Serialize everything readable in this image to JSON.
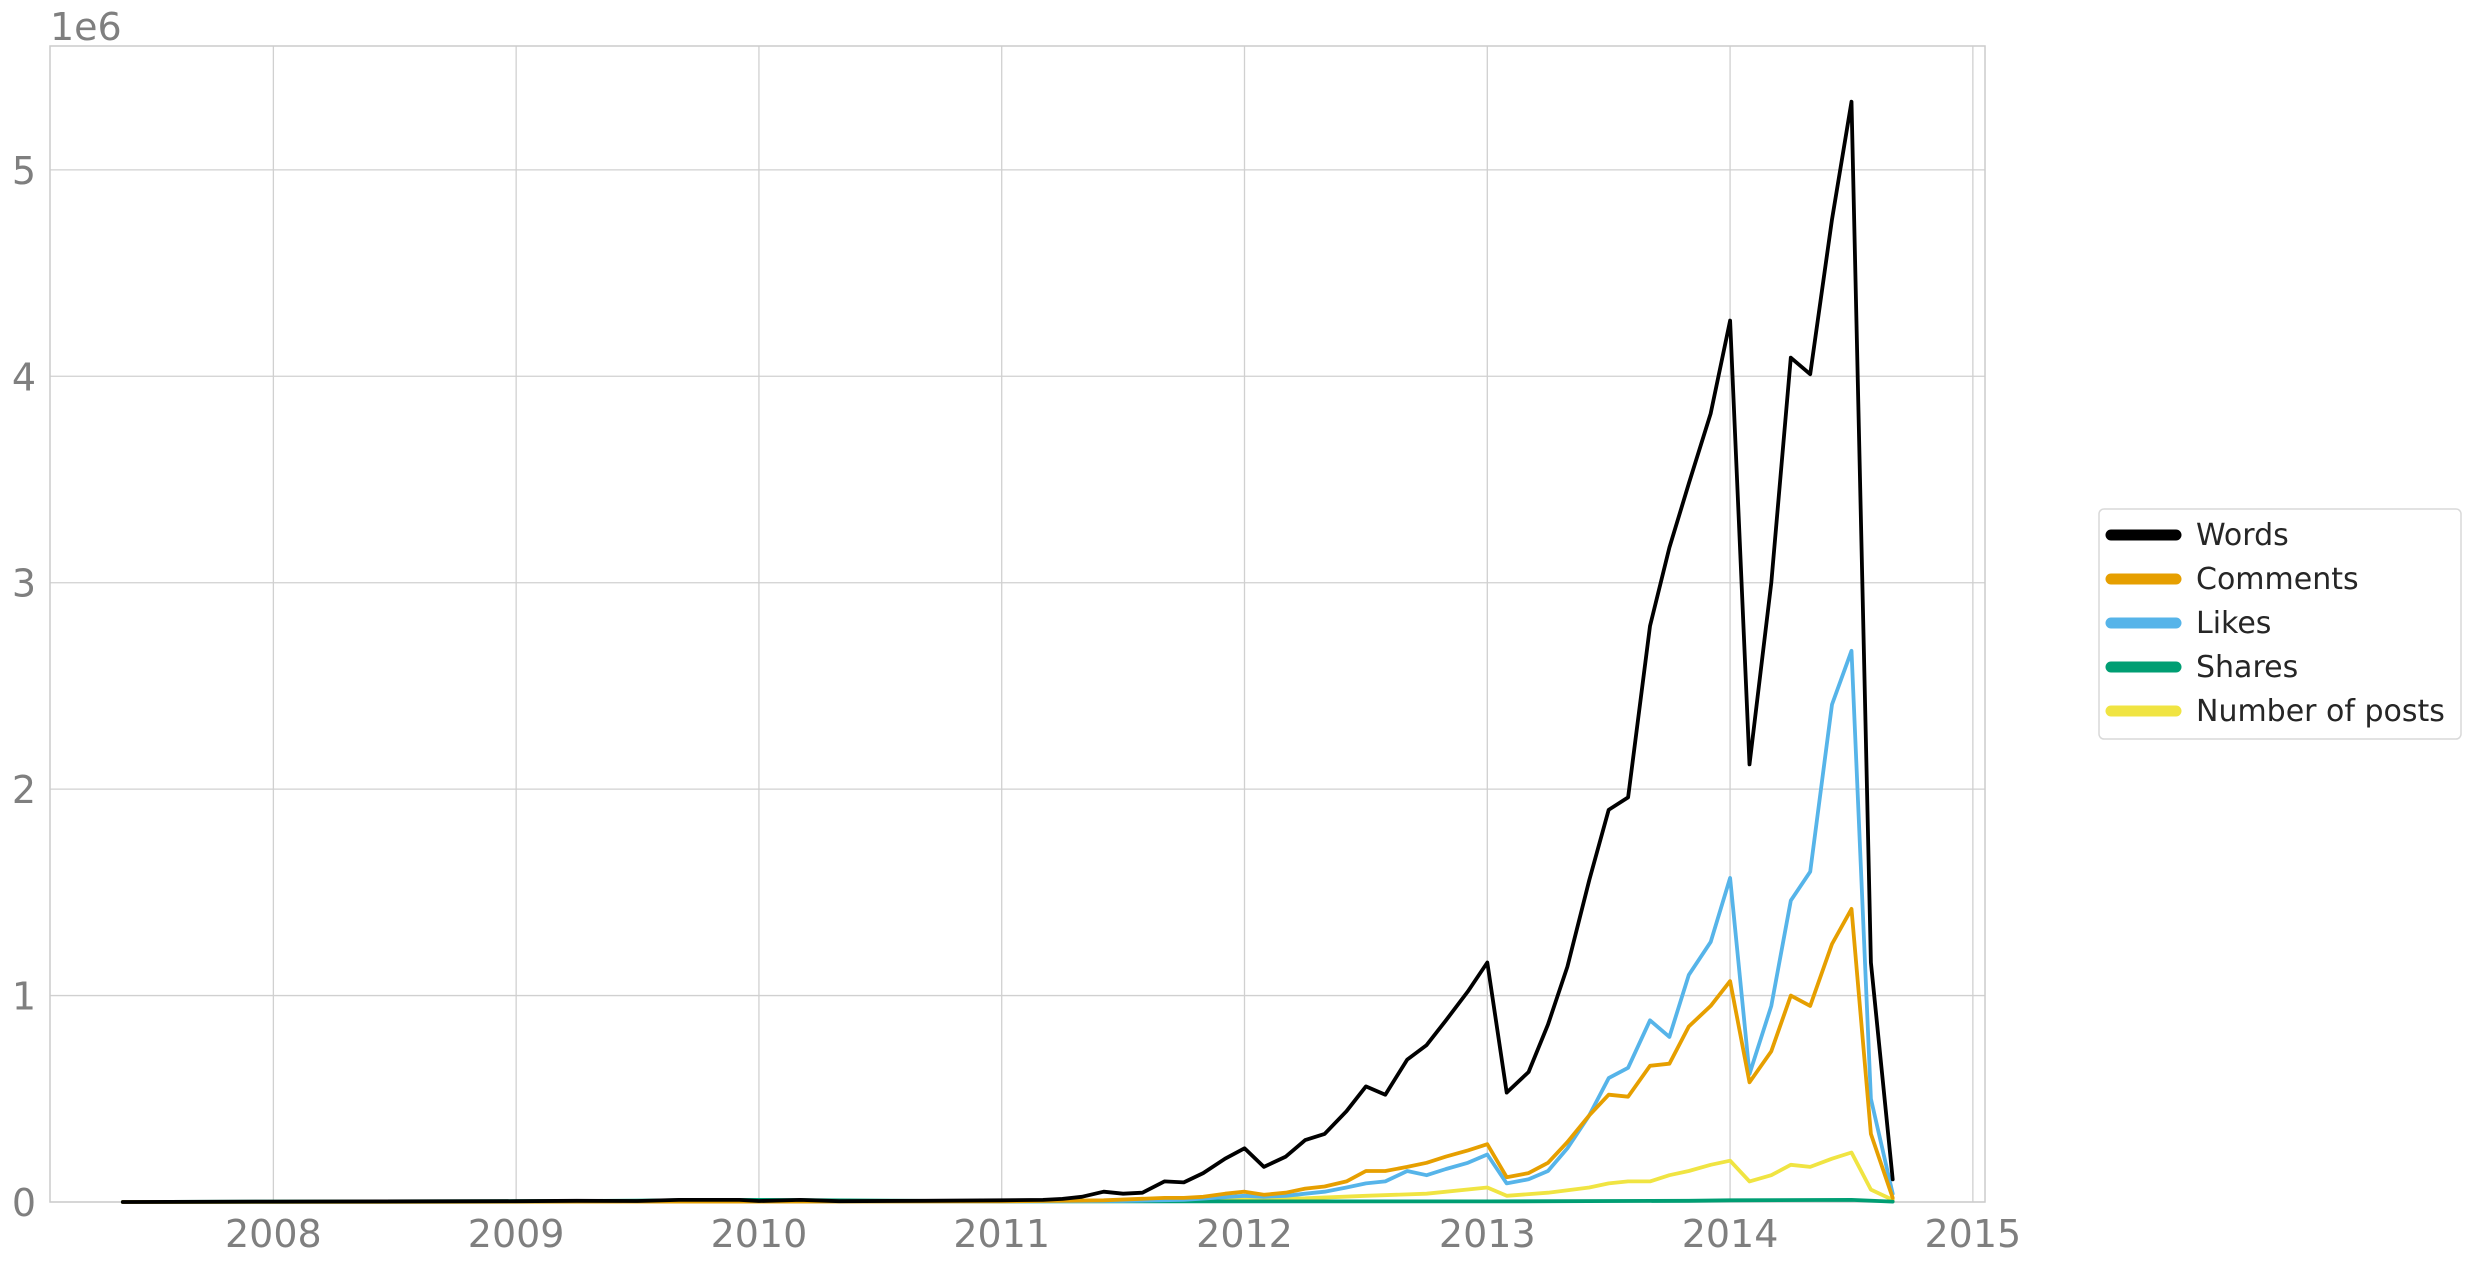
{
  "chart_data": {
    "type": "line",
    "title": "",
    "xlabel": "",
    "ylabel": "",
    "offset_label": "1e6",
    "grid": true,
    "legend_position": "center-right",
    "xlim": [
      2007.08,
      2015.05
    ],
    "ylim": [
      0,
      5.6
    ],
    "xticks": [
      {
        "value": 2008,
        "label": "2008"
      },
      {
        "value": 2009,
        "label": "2009"
      },
      {
        "value": 2010,
        "label": "2010"
      },
      {
        "value": 2011,
        "label": "2011"
      },
      {
        "value": 2012,
        "label": "2012"
      },
      {
        "value": 2013,
        "label": "2013"
      },
      {
        "value": 2014,
        "label": "2014"
      },
      {
        "value": 2015,
        "label": "2015"
      }
    ],
    "yticks": [
      {
        "value": 0,
        "label": "0"
      },
      {
        "value": 1,
        "label": "1"
      },
      {
        "value": 2,
        "label": "2"
      },
      {
        "value": 3,
        "label": "3"
      },
      {
        "value": 4,
        "label": "4"
      },
      {
        "value": 5,
        "label": "5"
      }
    ],
    "series": [
      {
        "name": "Number of posts",
        "color": "#f0e442",
        "points": [
          [
            2007.38,
            0
          ],
          [
            2010.0,
            0.003
          ],
          [
            2011.0,
            0.003
          ],
          [
            2011.25,
            0.005
          ],
          [
            2011.5,
            0.008
          ],
          [
            2011.75,
            0.01
          ],
          [
            2011.92,
            0.013
          ],
          [
            2012.0,
            0.015
          ],
          [
            2012.25,
            0.018
          ],
          [
            2012.5,
            0.03
          ],
          [
            2012.75,
            0.04
          ],
          [
            2013.0,
            0.07
          ],
          [
            2013.08,
            0.03
          ],
          [
            2013.25,
            0.045
          ],
          [
            2013.42,
            0.07
          ],
          [
            2013.5,
            0.09
          ],
          [
            2013.58,
            0.1
          ],
          [
            2013.67,
            0.1
          ],
          [
            2013.75,
            0.13
          ],
          [
            2013.83,
            0.15
          ],
          [
            2013.92,
            0.18
          ],
          [
            2014.0,
            0.2
          ],
          [
            2014.08,
            0.1
          ],
          [
            2014.17,
            0.13
          ],
          [
            2014.25,
            0.18
          ],
          [
            2014.33,
            0.17
          ],
          [
            2014.42,
            0.21
          ],
          [
            2014.5,
            0.24
          ],
          [
            2014.58,
            0.06
          ],
          [
            2014.67,
            0.01
          ]
        ]
      },
      {
        "name": "Shares",
        "color": "#009e73",
        "points": [
          [
            2007.38,
            0
          ],
          [
            2009.25,
            0.005
          ],
          [
            2009.67,
            0.008
          ],
          [
            2010.0,
            0.01
          ],
          [
            2011.0,
            0.003
          ],
          [
            2013.0,
            0.003
          ],
          [
            2013.83,
            0.006
          ],
          [
            2014.0,
            0.008
          ],
          [
            2014.5,
            0.01
          ],
          [
            2014.67,
            0.002
          ]
        ]
      },
      {
        "name": "Likes",
        "color": "#56b4e9",
        "points": [
          [
            2007.38,
            0
          ],
          [
            2011.0,
            0.003
          ],
          [
            2011.5,
            0.005
          ],
          [
            2011.75,
            0.01
          ],
          [
            2012.0,
            0.03
          ],
          [
            2012.08,
            0.025
          ],
          [
            2012.17,
            0.03
          ],
          [
            2012.25,
            0.04
          ],
          [
            2012.33,
            0.05
          ],
          [
            2012.42,
            0.07
          ],
          [
            2012.5,
            0.09
          ],
          [
            2012.58,
            0.1
          ],
          [
            2012.67,
            0.15
          ],
          [
            2012.75,
            0.13
          ],
          [
            2012.83,
            0.16
          ],
          [
            2012.92,
            0.19
          ],
          [
            2013.0,
            0.23
          ],
          [
            2013.08,
            0.09
          ],
          [
            2013.17,
            0.11
          ],
          [
            2013.25,
            0.15
          ],
          [
            2013.33,
            0.26
          ],
          [
            2013.42,
            0.42
          ],
          [
            2013.5,
            0.6
          ],
          [
            2013.58,
            0.65
          ],
          [
            2013.67,
            0.88
          ],
          [
            2013.75,
            0.8
          ],
          [
            2013.83,
            1.1
          ],
          [
            2013.92,
            1.26
          ],
          [
            2014.0,
            1.57
          ],
          [
            2014.08,
            0.62
          ],
          [
            2014.17,
            0.95
          ],
          [
            2014.25,
            1.46
          ],
          [
            2014.33,
            1.6
          ],
          [
            2014.42,
            2.41
          ],
          [
            2014.5,
            2.67
          ],
          [
            2014.58,
            0.5
          ],
          [
            2014.67,
            0.04
          ]
        ]
      },
      {
        "name": "Comments",
        "color": "#e69f00",
        "points": [
          [
            2007.38,
            0
          ],
          [
            2011.0,
            0.003
          ],
          [
            2011.42,
            0.008
          ],
          [
            2011.67,
            0.02
          ],
          [
            2011.75,
            0.02
          ],
          [
            2011.83,
            0.025
          ],
          [
            2011.92,
            0.04
          ],
          [
            2012.0,
            0.05
          ],
          [
            2012.08,
            0.035
          ],
          [
            2012.17,
            0.045
          ],
          [
            2012.25,
            0.065
          ],
          [
            2012.33,
            0.075
          ],
          [
            2012.42,
            0.1
          ],
          [
            2012.5,
            0.15
          ],
          [
            2012.58,
            0.15
          ],
          [
            2012.67,
            0.17
          ],
          [
            2012.75,
            0.19
          ],
          [
            2012.83,
            0.22
          ],
          [
            2012.92,
            0.25
          ],
          [
            2013.0,
            0.28
          ],
          [
            2013.08,
            0.12
          ],
          [
            2013.17,
            0.14
          ],
          [
            2013.25,
            0.19
          ],
          [
            2013.33,
            0.29
          ],
          [
            2013.42,
            0.42
          ],
          [
            2013.5,
            0.52
          ],
          [
            2013.58,
            0.51
          ],
          [
            2013.67,
            0.66
          ],
          [
            2013.75,
            0.67
          ],
          [
            2013.83,
            0.85
          ],
          [
            2013.92,
            0.95
          ],
          [
            2014.0,
            1.07
          ],
          [
            2014.08,
            0.58
          ],
          [
            2014.17,
            0.73
          ],
          [
            2014.25,
            1.0
          ],
          [
            2014.33,
            0.95
          ],
          [
            2014.42,
            1.25
          ],
          [
            2014.5,
            1.42
          ],
          [
            2014.58,
            0.33
          ],
          [
            2014.67,
            0.02
          ]
        ]
      },
      {
        "name": "Words",
        "color": "#000000",
        "points": [
          [
            2007.38,
            0
          ],
          [
            2008.0,
            0.002
          ],
          [
            2009.0,
            0.004
          ],
          [
            2009.25,
            0.006
          ],
          [
            2009.5,
            0.005
          ],
          [
            2009.67,
            0.01
          ],
          [
            2009.92,
            0.01
          ],
          [
            2010.0,
            0.005
          ],
          [
            2010.17,
            0.01
          ],
          [
            2010.33,
            0.004
          ],
          [
            2010.67,
            0.006
          ],
          [
            2011.0,
            0.008
          ],
          [
            2011.17,
            0.01
          ],
          [
            2011.25,
            0.015
          ],
          [
            2011.33,
            0.025
          ],
          [
            2011.42,
            0.05
          ],
          [
            2011.5,
            0.04
          ],
          [
            2011.58,
            0.045
          ],
          [
            2011.67,
            0.1
          ],
          [
            2011.75,
            0.095
          ],
          [
            2011.83,
            0.14
          ],
          [
            2011.92,
            0.21
          ],
          [
            2012.0,
            0.26
          ],
          [
            2012.08,
            0.17
          ],
          [
            2012.17,
            0.22
          ],
          [
            2012.25,
            0.3
          ],
          [
            2012.33,
            0.33
          ],
          [
            2012.42,
            0.44
          ],
          [
            2012.5,
            0.56
          ],
          [
            2012.58,
            0.52
          ],
          [
            2012.67,
            0.69
          ],
          [
            2012.75,
            0.76
          ],
          [
            2012.83,
            0.88
          ],
          [
            2012.92,
            1.02
          ],
          [
            2013.0,
            1.16
          ],
          [
            2013.08,
            0.53
          ],
          [
            2013.17,
            0.63
          ],
          [
            2013.25,
            0.86
          ],
          [
            2013.33,
            1.14
          ],
          [
            2013.42,
            1.56
          ],
          [
            2013.5,
            1.9
          ],
          [
            2013.58,
            1.96
          ],
          [
            2013.67,
            2.79
          ],
          [
            2013.75,
            3.17
          ],
          [
            2013.83,
            3.48
          ],
          [
            2013.92,
            3.82
          ],
          [
            2014.0,
            4.27
          ],
          [
            2014.08,
            2.12
          ],
          [
            2014.17,
            3.0
          ],
          [
            2014.25,
            4.09
          ],
          [
            2014.33,
            4.01
          ],
          [
            2014.42,
            4.76
          ],
          [
            2014.5,
            5.33
          ],
          [
            2014.58,
            1.16
          ],
          [
            2014.67,
            0.11
          ]
        ]
      }
    ]
  },
  "legend": {
    "entries": [
      {
        "label": "Words",
        "color": "#000000"
      },
      {
        "label": "Comments",
        "color": "#e69f00"
      },
      {
        "label": "Likes",
        "color": "#56b4e9"
      },
      {
        "label": "Shares",
        "color": "#009e73"
      },
      {
        "label": "Number of posts",
        "color": "#f0e442"
      }
    ]
  },
  "colors": {
    "grid": "#d0d0d0",
    "axis_frame": "#cccccc",
    "tick_text": "#7f7f7f",
    "legend_border": "#d9d9d9"
  }
}
